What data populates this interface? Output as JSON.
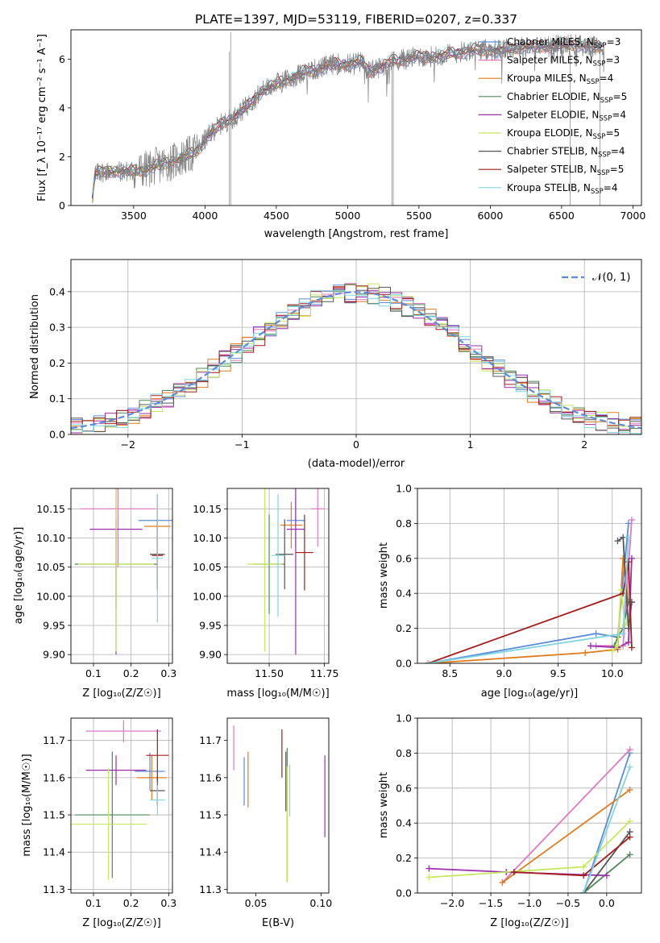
{
  "colors": {
    "chabrier_miles": "#5b8bd9",
    "salpeter_miles": "#e377c2",
    "kroupa_miles": "#e07b1b",
    "chabrier_elodie": "#4e8a5a",
    "salpeter_elodie": "#9b2fae",
    "kroupa_elodie": "#c5e85c",
    "chabrier_stelib": "#555555",
    "salpeter_stelib": "#a51c1c",
    "kroupa_stelib": "#7fd6e0",
    "data": "#808080",
    "normal": "#5b8bd9"
  },
  "chart_data": [
    {
      "id": "spectrum",
      "type": "line",
      "title": "PLATE=1397, MJD=53119, FIBERID=0207, z=0.337",
      "xlabel": "wavelength [Angstrom, rest frame]",
      "ylabel": "Flux [f_λ 10⁻¹⁷ erg cm⁻² s⁻¹ A⁻¹]",
      "xlim": [
        3060,
        7060
      ],
      "ylim": [
        0,
        7.2
      ],
      "xticks": [
        3500,
        4000,
        4500,
        5000,
        5500,
        6000,
        6500,
        7000
      ],
      "yticks": [
        0,
        2,
        4,
        6
      ],
      "continuum": {
        "x": [
          3200,
          3210,
          3230,
          3300,
          3400,
          3500,
          3600,
          3700,
          3800,
          3900,
          3950,
          4000,
          4100,
          4200,
          4300,
          4400,
          4500,
          4600,
          4700,
          4800,
          4900,
          5000,
          5100,
          5150,
          5200,
          5300,
          5400,
          5500,
          5600,
          5700,
          5800,
          5900,
          6000,
          6100,
          6200,
          6300,
          6400,
          6500,
          6600,
          6700,
          6800
        ],
        "y": [
          0.0,
          0.3,
          1.3,
          1.4,
          1.4,
          1.4,
          1.5,
          1.7,
          1.85,
          2.1,
          2.3,
          2.7,
          3.3,
          3.6,
          4.1,
          4.7,
          5.0,
          5.2,
          5.5,
          5.6,
          5.8,
          5.8,
          5.9,
          5.5,
          5.6,
          5.9,
          6.0,
          6.1,
          6.1,
          6.2,
          6.3,
          6.4,
          6.35,
          6.4,
          6.5,
          6.5,
          6.5,
          6.6,
          6.6,
          6.5,
          6.5
        ]
      },
      "legend": [
        {
          "imf": "Chabrier",
          "lib": "MILES",
          "nssp": "3",
          "color": "#5b8bd9"
        },
        {
          "imf": "Salpeter",
          "lib": "MILES",
          "nssp": "3",
          "color": "#e377c2"
        },
        {
          "imf": "Kroupa",
          "lib": "MILES",
          "nssp": "4",
          "color": "#e07b1b"
        },
        {
          "imf": "Chabrier",
          "lib": "ELODIE",
          "nssp": "5",
          "color": "#4e8a5a"
        },
        {
          "imf": "Salpeter",
          "lib": "ELODIE",
          "nssp": "4",
          "color": "#9b2fae"
        },
        {
          "imf": "Kroupa",
          "lib": "ELODIE",
          "nssp": "5",
          "color": "#c5e85c"
        },
        {
          "imf": "Chabrier",
          "lib": "STELIB",
          "nssp": "4",
          "color": "#555555"
        },
        {
          "imf": "Salpeter",
          "lib": "STELIB",
          "nssp": "5",
          "color": "#a51c1c"
        },
        {
          "imf": "Kroupa",
          "lib": "STELIB",
          "nssp": "4",
          "color": "#7fd6e0"
        }
      ],
      "legend_loc": "right",
      "nssp_prefix": ", N",
      "nssp_sub": "SSP",
      "nssp_eq": "="
    },
    {
      "id": "residuals",
      "type": "area",
      "xlabel": "(data-model)/error",
      "ylabel": "Normed distribution",
      "xlim": [
        -2.5,
        2.5
      ],
      "ylim": [
        0,
        0.49
      ],
      "xticks": [
        -2,
        -1,
        0,
        1,
        2
      ],
      "yticks": [
        0.0,
        0.1,
        0.2,
        0.3,
        0.4
      ],
      "grid": true,
      "legend_label": "𝒩(0, 1)",
      "legend_loc": "top-right",
      "bins": 50
    },
    {
      "id": "age-z",
      "type": "scatter",
      "xlabel": "Z [log₁₀(Z/Z☉)]",
      "ylabel": "age [log₁₀(age/yr)]",
      "xlim": [
        0.04,
        0.31
      ],
      "ylim": [
        9.885,
        10.185
      ],
      "xticks": [
        0.1,
        0.2,
        0.3
      ],
      "yticks": [
        9.9,
        9.95,
        10.0,
        10.05,
        10.1,
        10.15
      ],
      "grid": true,
      "points": [
        {
          "x": 0.27,
          "y": 10.13,
          "xerr": 0.05,
          "yerr": 0.045
        },
        {
          "x": 0.165,
          "y": 10.15,
          "xerr": 0.1,
          "yerr": 0.1
        },
        {
          "x": 0.27,
          "y": 10.12,
          "xerr": 0.035,
          "yerr": 0.04
        },
        {
          "x": 0.16,
          "y": 10.055,
          "xerr": 0.11,
          "yerr": 0.075
        },
        {
          "x": 0.16,
          "y": 10.115,
          "xerr": 0.07,
          "yerr": 0.215
        },
        {
          "x": 0.16,
          "y": 10.055,
          "xerr": 0.1,
          "yerr": 0.15
        },
        {
          "x": 0.27,
          "y": 10.072,
          "xerr": 0.02,
          "yerr": 0.06
        },
        {
          "x": 0.27,
          "y": 10.07,
          "xerr": 0.015,
          "yerr": 0.06
        },
        {
          "x": 0.27,
          "y": 10.065,
          "xerr": 0.015,
          "yerr": 0.11
        }
      ]
    },
    {
      "id": "age-mass",
      "type": "scatter",
      "xlabel": "mass [log₁₀(M/M☉)]",
      "ylabel": "",
      "xlim": [
        11.31,
        11.77
      ],
      "ylim": [
        9.885,
        10.185
      ],
      "xticks": [
        11.5,
        11.75
      ],
      "yticks": [
        9.9,
        9.95,
        10.0,
        10.05,
        10.1,
        10.15
      ],
      "grid": true,
      "points": [
        {
          "x": 11.62,
          "y": 10.13,
          "xerr": 0.04,
          "yerr": 0.045
        },
        {
          "x": 11.72,
          "y": 10.15,
          "xerr": 0.03,
          "yerr": 0.065
        },
        {
          "x": 11.6,
          "y": 10.122,
          "xerr": 0.05,
          "yerr": 0.04
        },
        {
          "x": 11.5,
          "y": 10.055,
          "xerr": 0.07,
          "yerr": 0.085
        },
        {
          "x": 11.62,
          "y": 10.115,
          "xerr": 0.04,
          "yerr": 0.215
        },
        {
          "x": 11.48,
          "y": 10.055,
          "xerr": 0.08,
          "yerr": 0.15
        },
        {
          "x": 11.57,
          "y": 10.072,
          "xerr": 0.04,
          "yerr": 0.06
        },
        {
          "x": 11.66,
          "y": 10.075,
          "xerr": 0.04,
          "yerr": 0.065
        },
        {
          "x": 11.54,
          "y": 10.07,
          "xerr": 0.03,
          "yerr": 0.105
        }
      ]
    },
    {
      "id": "weight-age",
      "type": "line",
      "xlabel": "age [log₁₀(age/yr)]",
      "ylabel": "mass weight",
      "xlim": [
        8.2,
        10.27
      ],
      "ylim": [
        0,
        1.0
      ],
      "xticks": [
        8.5,
        9.0,
        9.5,
        10.0
      ],
      "yticks": [
        0.0,
        0.2,
        0.4,
        0.6,
        0.8,
        1.0
      ],
      "grid": true,
      "series": [
        {
          "x": [
            8.3,
            9.85,
            10.05,
            10.15
          ],
          "y": [
            0.0,
            0.17,
            0.15,
            0.8
          ]
        },
        {
          "x": [
            9.85,
            10.1,
            10.18
          ],
          "y": [
            0.1,
            0.1,
            0.82
          ]
        },
        {
          "x": [
            8.3,
            9.75,
            10.05,
            10.1,
            10.15
          ],
          "y": [
            0.0,
            0.06,
            0.08,
            0.6,
            0.35
          ]
        },
        {
          "x": [
            10.02,
            10.05,
            10.1,
            10.15,
            10.18
          ],
          "y": [
            0.1,
            0.15,
            0.2,
            0.35,
            0.35
          ]
        },
        {
          "x": [
            9.8,
            10.05,
            10.15,
            10.18
          ],
          "y": [
            0.1,
            0.09,
            0.12,
            0.6
          ]
        },
        {
          "x": [
            10.0,
            10.05,
            10.08,
            10.12,
            10.15
          ],
          "y": [
            0.07,
            0.1,
            0.42,
            0.22,
            0.25
          ]
        },
        {
          "x": [
            10.05,
            10.1,
            10.15,
            10.18
          ],
          "y": [
            0.7,
            0.72,
            0.2,
            0.35
          ]
        },
        {
          "x": [
            8.3,
            10.1,
            10.15,
            10.18
          ],
          "y": [
            0.0,
            0.4,
            0.58,
            0.09
          ]
        },
        {
          "x": [
            8.3,
            10.1,
            10.15
          ],
          "y": [
            0.0,
            0.17,
            0.72
          ]
        }
      ]
    },
    {
      "id": "mass-z",
      "type": "scatter",
      "xlabel": "Z [log₁₀(Z/Z☉)]",
      "ylabel": "mass [log₁₀(M/M☉)]",
      "xlim": [
        0.04,
        0.31
      ],
      "ylim": [
        11.29,
        11.76
      ],
      "xticks": [
        0.1,
        0.2,
        0.3
      ],
      "yticks": [
        11.3,
        11.4,
        11.5,
        11.6,
        11.7
      ],
      "grid": true,
      "points": [
        {
          "x": 0.25,
          "y": 11.617,
          "xerr": 0.04,
          "yerr": 0.05
        },
        {
          "x": 0.18,
          "y": 11.725,
          "xerr": 0.1,
          "yerr": 0.03
        },
        {
          "x": 0.255,
          "y": 11.6,
          "xerr": 0.04,
          "yerr": 0.06
        },
        {
          "x": 0.15,
          "y": 11.5,
          "xerr": 0.1,
          "yerr": 0.17
        },
        {
          "x": 0.16,
          "y": 11.62,
          "xerr": 0.08,
          "yerr": 0.04
        },
        {
          "x": 0.14,
          "y": 11.475,
          "xerr": 0.1,
          "yerr": 0.15
        },
        {
          "x": 0.27,
          "y": 11.565,
          "xerr": 0.02,
          "yerr": 0.04
        },
        {
          "x": 0.27,
          "y": 11.66,
          "xerr": 0.03,
          "yerr": 0.07
        },
        {
          "x": 0.27,
          "y": 11.54,
          "xerr": 0.02,
          "yerr": 0.04
        }
      ]
    },
    {
      "id": "mass-ebv",
      "type": "scatter",
      "xlabel": "E(B-V)",
      "ylabel": "",
      "xlim": [
        0.028,
        0.106
      ],
      "ylim": [
        11.29,
        11.76
      ],
      "xticks": [
        0.05,
        0.1
      ],
      "yticks": [
        11.3,
        11.4,
        11.5,
        11.6,
        11.7
      ],
      "grid": false,
      "points": [
        {
          "x": 0.041,
          "y": 11.59,
          "yerr": 0.065
        },
        {
          "x": 0.033,
          "y": 11.68,
          "yerr": 0.06
        },
        {
          "x": 0.044,
          "y": 11.595,
          "yerr": 0.075
        },
        {
          "x": 0.074,
          "y": 11.5,
          "yerr": 0.18
        },
        {
          "x": 0.103,
          "y": 11.55,
          "yerr": 0.11
        },
        {
          "x": 0.074,
          "y": 11.475,
          "yerr": 0.155
        },
        {
          "x": 0.073,
          "y": 11.59,
          "yerr": 0.08
        },
        {
          "x": 0.07,
          "y": 11.665,
          "yerr": 0.065
        },
        {
          "x": 0.076,
          "y": 11.565,
          "yerr": 0.07
        }
      ]
    },
    {
      "id": "weight-z",
      "type": "line",
      "xlabel": "Z [log₁₀(Z/Z☉)]",
      "ylabel": "mass weight",
      "xlim": [
        -2.45,
        0.45
      ],
      "ylim": [
        0,
        1.0
      ],
      "xticks": [
        -2.0,
        -1.5,
        -1.0,
        -0.5,
        0.0
      ],
      "yticks": [
        0.0,
        0.2,
        0.4,
        0.6,
        0.8,
        1.0
      ],
      "grid": true,
      "series": [
        {
          "x": [
            -0.3,
            0.3
          ],
          "y": [
            0.0,
            0.8
          ]
        },
        {
          "x": [
            -1.35,
            0.3
          ],
          "y": [
            0.06,
            0.82
          ]
        },
        {
          "x": [
            -1.35,
            0.3
          ],
          "y": [
            0.06,
            0.59
          ]
        },
        {
          "x": [
            -0.3,
            0.3
          ],
          "y": [
            0.0,
            0.22
          ]
        },
        {
          "x": [
            -2.3,
            -1.3,
            0.0
          ],
          "y": [
            0.14,
            0.12,
            0.1
          ]
        },
        {
          "x": [
            -2.3,
            -0.3,
            0.3
          ],
          "y": [
            0.09,
            0.15,
            0.41
          ]
        },
        {
          "x": [
            -0.3,
            0.3
          ],
          "y": [
            0.0,
            0.35
          ]
        },
        {
          "x": [
            -1.2,
            -0.3,
            0.3
          ],
          "y": [
            0.12,
            0.1,
            0.32
          ]
        },
        {
          "x": [
            -0.3,
            0.3
          ],
          "y": [
            0.0,
            0.72
          ]
        }
      ]
    }
  ]
}
